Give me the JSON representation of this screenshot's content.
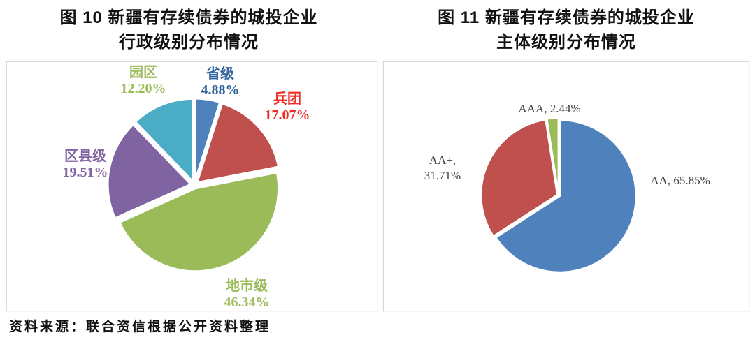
{
  "figure10": {
    "title_line1": "图 10  新疆有存续债券的城投企业",
    "title_line2": "行政级别分布情况",
    "labels": {
      "yuanqu": {
        "name": "园区",
        "pct": "12.20%"
      },
      "shengji": {
        "name": "省级",
        "pct": "4.88%"
      },
      "bingtuan": {
        "name": "兵团",
        "pct": "17.07%"
      },
      "quxianji": {
        "name": "区县级",
        "pct": "19.51%"
      },
      "dishiji": {
        "name": "地市级",
        "pct": "46.34%"
      }
    }
  },
  "figure11": {
    "title_line1": "图 11  新疆有存续债券的城投企业",
    "title_line2": "主体级别分布情况",
    "labels": {
      "aaa": "AAA, 2.44%",
      "aaplus_line1": "AA+,",
      "aaplus_line2": "31.71%",
      "aa": "AA, 65.85%"
    }
  },
  "source_note": "资料来源：联合资信根据公开资料整理",
  "colors": {
    "slice_blue": "#4f81bd",
    "slice_red": "#c0504d",
    "slice_green": "#9bbb59",
    "slice_purple": "#8064a2",
    "slice_cyan": "#4bacc6",
    "label_green": "#9bbb59",
    "label_blue": "#31659c",
    "label_red": "#ee2c23",
    "label_purple": "#8064a2",
    "label_gray": "#3f3f3f",
    "panel_border": "#d9d9d9"
  },
  "chart_data": [
    {
      "id": "figure10-pie",
      "type": "pie",
      "title": "图 10 新疆有存续债券的城投企业行政级别分布情况",
      "start_angle_deg": 0,
      "direction": "clockwise",
      "legend": "none",
      "slices": [
        {
          "label": "省级",
          "value": 4.88,
          "color": "#4f81bd"
        },
        {
          "label": "兵团",
          "value": 17.07,
          "color": "#c0504d"
        },
        {
          "label": "地市级",
          "value": 46.34,
          "color": "#9bbb59"
        },
        {
          "label": "区县级",
          "value": 19.51,
          "color": "#8064a2"
        },
        {
          "label": "园区",
          "value": 12.2,
          "color": "#4bacc6"
        }
      ]
    },
    {
      "id": "figure11-pie",
      "type": "pie",
      "title": "图 11 新疆有存续债券的城投企业主体级别分布情况",
      "start_angle_deg": 0,
      "direction": "clockwise",
      "legend": "none",
      "slices": [
        {
          "label": "AA",
          "value": 65.85,
          "color": "#4f81bd"
        },
        {
          "label": "AA+",
          "value": 31.71,
          "color": "#c0504d"
        },
        {
          "label": "AAA",
          "value": 2.44,
          "color": "#9bbb59"
        }
      ]
    }
  ]
}
